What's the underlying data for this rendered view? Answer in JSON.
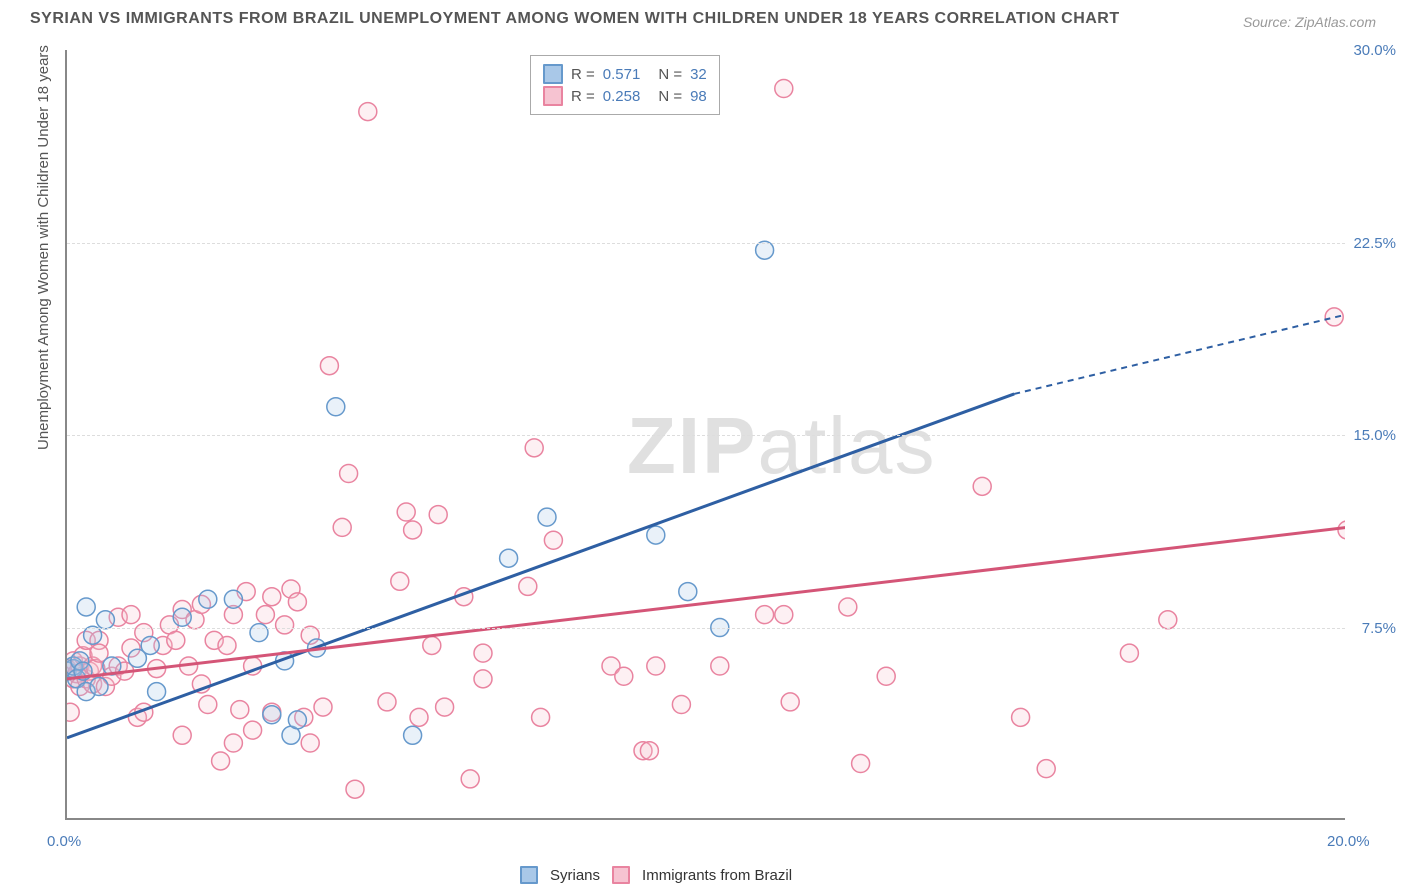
{
  "title": "SYRIAN VS IMMIGRANTS FROM BRAZIL UNEMPLOYMENT AMONG WOMEN WITH CHILDREN UNDER 18 YEARS CORRELATION CHART",
  "source": "Source: ZipAtlas.com",
  "watermark_prefix": "ZIP",
  "watermark_suffix": "atlas",
  "title_fontsize": 16,
  "source_fontsize": 14,
  "ylabel": "Unemployment Among Women with Children Under 18 years",
  "ylabel_fontsize": 15,
  "xlim": [
    0,
    20
  ],
  "ylim": [
    0,
    30
  ],
  "x_ticks": [
    {
      "v": 0,
      "l": "0.0%"
    },
    {
      "v": 20,
      "l": "20.0%"
    }
  ],
  "y_ticks": [
    {
      "v": 7.5,
      "l": "7.5%"
    },
    {
      "v": 15,
      "l": "15.0%"
    },
    {
      "v": 22.5,
      "l": "22.5%"
    },
    {
      "v": 30,
      "l": "30.0%"
    }
  ],
  "grid_y": [
    7.5,
    15,
    22.5
  ],
  "grid_color": "#dddddd",
  "border_color": "#888888",
  "background_color": "#ffffff",
  "tick_color": "#4a7bb8",
  "marker_radius": 9,
  "marker_stroke_width": 1.5,
  "marker_fill_opacity": 0.25,
  "trend_line_width": 3,
  "series": [
    {
      "name": "Syrians",
      "color_stroke": "#6699cc",
      "color_fill": "#a9c8e8",
      "trend_color": "#2e5fa3",
      "R": "0.571",
      "N": "32",
      "trend": {
        "x1": 0,
        "y1": 3.2,
        "x2": 14.8,
        "y2": 16.6,
        "dash_x2": 20,
        "dash_y2": 19.7
      },
      "points": [
        [
          0.0,
          5.8
        ],
        [
          0.1,
          5.9
        ],
        [
          0.1,
          6.0
        ],
        [
          0.15,
          5.5
        ],
        [
          0.2,
          6.2
        ],
        [
          0.25,
          5.8
        ],
        [
          0.3,
          5.0
        ],
        [
          0.3,
          8.3
        ],
        [
          0.4,
          7.2
        ],
        [
          0.5,
          5.2
        ],
        [
          0.6,
          7.8
        ],
        [
          0.7,
          6.0
        ],
        [
          1.1,
          6.3
        ],
        [
          1.3,
          6.8
        ],
        [
          1.4,
          5.0
        ],
        [
          1.8,
          7.9
        ],
        [
          2.2,
          8.6
        ],
        [
          2.6,
          8.6
        ],
        [
          3.0,
          7.3
        ],
        [
          3.2,
          4.1
        ],
        [
          3.4,
          6.2
        ],
        [
          3.5,
          3.3
        ],
        [
          3.6,
          3.9
        ],
        [
          3.9,
          6.7
        ],
        [
          4.2,
          16.1
        ],
        [
          5.4,
          3.3
        ],
        [
          6.9,
          10.2
        ],
        [
          7.5,
          11.8
        ],
        [
          9.2,
          11.1
        ],
        [
          9.7,
          8.9
        ],
        [
          10.2,
          7.5
        ],
        [
          10.9,
          22.2
        ]
      ]
    },
    {
      "name": "Immigrants from Brazil",
      "color_stroke": "#e984a0",
      "color_fill": "#f6c3d1",
      "trend_color": "#d45577",
      "R": "0.258",
      "N": "98",
      "trend": {
        "x1": 0,
        "y1": 5.5,
        "x2": 20,
        "y2": 11.4
      },
      "points": [
        [
          0.0,
          5.9
        ],
        [
          0.05,
          4.2
        ],
        [
          0.1,
          5.5
        ],
        [
          0.1,
          6.2
        ],
        [
          0.15,
          5.7
        ],
        [
          0.2,
          6.0
        ],
        [
          0.2,
          5.2
        ],
        [
          0.25,
          6.4
        ],
        [
          0.3,
          5.5
        ],
        [
          0.3,
          7.0
        ],
        [
          0.35,
          5.8
        ],
        [
          0.4,
          5.3
        ],
        [
          0.4,
          6.0
        ],
        [
          0.45,
          5.9
        ],
        [
          0.5,
          7.0
        ],
        [
          0.5,
          6.5
        ],
        [
          0.6,
          5.2
        ],
        [
          0.7,
          5.6
        ],
        [
          0.8,
          6.0
        ],
        [
          0.8,
          7.9
        ],
        [
          0.9,
          5.8
        ],
        [
          1.0,
          8.0
        ],
        [
          1.0,
          6.7
        ],
        [
          1.1,
          4.0
        ],
        [
          1.2,
          4.2
        ],
        [
          1.2,
          7.3
        ],
        [
          1.4,
          5.9
        ],
        [
          1.5,
          6.8
        ],
        [
          1.6,
          7.6
        ],
        [
          1.7,
          7.0
        ],
        [
          1.8,
          8.2
        ],
        [
          1.8,
          3.3
        ],
        [
          1.9,
          6.0
        ],
        [
          2.0,
          7.8
        ],
        [
          2.1,
          5.3
        ],
        [
          2.1,
          8.4
        ],
        [
          2.2,
          4.5
        ],
        [
          2.3,
          7.0
        ],
        [
          2.4,
          2.3
        ],
        [
          2.5,
          6.8
        ],
        [
          2.6,
          3.0
        ],
        [
          2.6,
          8.0
        ],
        [
          2.7,
          4.3
        ],
        [
          2.8,
          8.9
        ],
        [
          2.9,
          3.5
        ],
        [
          2.9,
          6.0
        ],
        [
          3.1,
          8.0
        ],
        [
          3.2,
          8.7
        ],
        [
          3.2,
          4.2
        ],
        [
          3.4,
          7.6
        ],
        [
          3.5,
          9.0
        ],
        [
          3.6,
          8.5
        ],
        [
          3.7,
          4.0
        ],
        [
          3.8,
          3.0
        ],
        [
          3.8,
          7.2
        ],
        [
          4.0,
          4.4
        ],
        [
          4.1,
          17.7
        ],
        [
          4.3,
          11.4
        ],
        [
          4.4,
          13.5
        ],
        [
          4.5,
          1.2
        ],
        [
          4.7,
          27.6
        ],
        [
          5.0,
          4.6
        ],
        [
          5.2,
          9.3
        ],
        [
          5.3,
          12.0
        ],
        [
          5.4,
          11.3
        ],
        [
          5.5,
          4.0
        ],
        [
          5.7,
          6.8
        ],
        [
          5.8,
          11.9
        ],
        [
          5.9,
          4.4
        ],
        [
          6.2,
          8.7
        ],
        [
          6.3,
          1.6
        ],
        [
          6.5,
          6.5
        ],
        [
          6.5,
          5.5
        ],
        [
          7.2,
          9.1
        ],
        [
          7.3,
          14.5
        ],
        [
          7.4,
          4.0
        ],
        [
          7.6,
          10.9
        ],
        [
          8.5,
          6.0
        ],
        [
          8.7,
          5.6
        ],
        [
          9.0,
          2.7
        ],
        [
          9.1,
          2.7
        ],
        [
          9.2,
          6.0
        ],
        [
          9.6,
          4.5
        ],
        [
          10.2,
          6.0
        ],
        [
          10.9,
          8.0
        ],
        [
          11.2,
          8.0
        ],
        [
          11.2,
          28.5
        ],
        [
          11.3,
          4.6
        ],
        [
          12.2,
          8.3
        ],
        [
          12.4,
          2.2
        ],
        [
          12.8,
          5.6
        ],
        [
          14.3,
          13.0
        ],
        [
          14.9,
          4.0
        ],
        [
          15.3,
          2.0
        ],
        [
          16.6,
          6.5
        ],
        [
          17.2,
          7.8
        ],
        [
          19.8,
          19.6
        ],
        [
          20.0,
          11.3
        ]
      ]
    }
  ],
  "legend_top": {
    "R_label": "R  =",
    "N_label": "N  ="
  },
  "legend_bottom_gap": 12
}
